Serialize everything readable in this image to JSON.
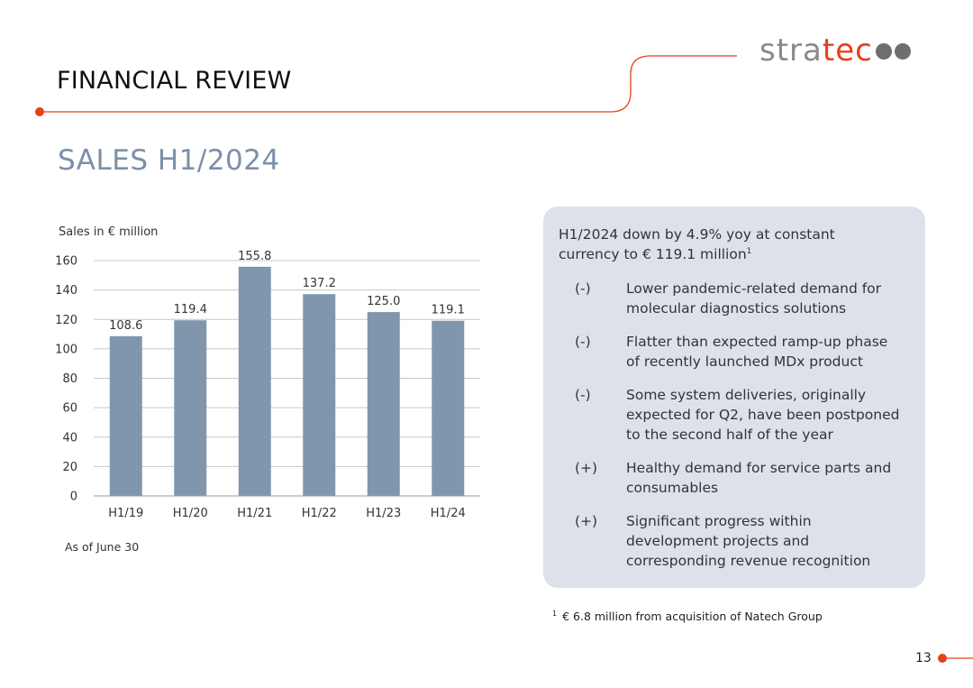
{
  "logo": {
    "part1": "stra",
    "part2": "tec"
  },
  "header": {
    "title": "FINANCIAL REVIEW"
  },
  "section": {
    "title": "SALES H1/2024"
  },
  "chart_data": {
    "type": "bar",
    "unit_label": "Sales in € million",
    "categories": [
      "H1/19",
      "H1/20",
      "H1/21",
      "H1/22",
      "H1/23",
      "H1/24"
    ],
    "values": [
      108.6,
      119.4,
      155.8,
      137.2,
      125.0,
      119.1
    ],
    "value_labels": [
      "108.6",
      "119.4",
      "155.8",
      "137.2",
      "125.0",
      "119.1"
    ],
    "ylim": [
      0,
      160
    ],
    "yticks": [
      0,
      20,
      40,
      60,
      80,
      100,
      120,
      140,
      160
    ],
    "grid": true,
    "bar_color": "#8096ad",
    "note": "As of  June 30"
  },
  "panel": {
    "intro": "H1/2024 down by 4.9% yoy at constant currency to € 119.1 million",
    "intro_footnote_marker": "1",
    "bullets": [
      {
        "sign": "(-)",
        "text": "Lower pandemic-related demand for molecular diagnostics solutions"
      },
      {
        "sign": "(-)",
        "text": "Flatter than expected ramp-up phase of recently launched MDx product"
      },
      {
        "sign": "(-)",
        "text": "Some system deliveries, originally expected for Q2, have been postponed to the second half of the year"
      },
      {
        "sign": "(+)",
        "text": "Healthy demand for service parts and consumables"
      },
      {
        "sign": "(+)",
        "text": "Significant progress within development projects and corresponding revenue recognition"
      }
    ]
  },
  "footnote": {
    "marker": "1",
    "text": "€ 6.8 million from acquisition of Natech Group"
  },
  "page": {
    "number": "13"
  },
  "colors": {
    "accent": "#e8401c",
    "bars": "#8096ad",
    "panel": "#dde2ea",
    "title": "#7b8fa8"
  }
}
